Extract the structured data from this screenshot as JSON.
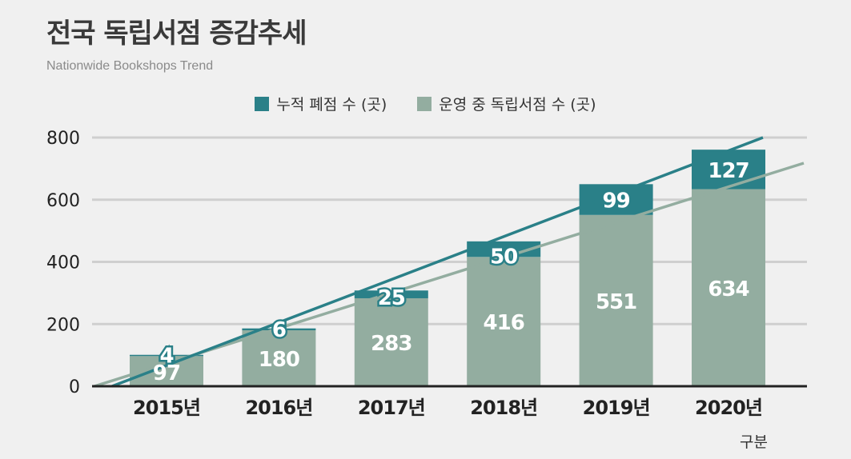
{
  "title": "전국 독립서점 증감추세",
  "subtitle": "Nationwide Bookshops Trend",
  "x_unit_label": "구분",
  "colors": {
    "closed": "#2a8088",
    "operating": "#93ada0",
    "gridline": "#cfcfcf",
    "axis": "#222222",
    "trend_closed": "#2a8088",
    "trend_operating": "#93ada0"
  },
  "chart_data": {
    "type": "bar",
    "stacked": true,
    "categories": [
      "2015년",
      "2016년",
      "2017년",
      "2018년",
      "2019년",
      "2020년"
    ],
    "series": [
      {
        "name": "운영 중 독립서점 수 (곳)",
        "values": [
          97,
          180,
          283,
          416,
          551,
          634
        ]
      },
      {
        "name": "누적 폐점 수 (곳)",
        "values": [
          4,
          6,
          25,
          50,
          99,
          127
        ]
      }
    ],
    "legend": [
      "누적 폐점 수 (곳)",
      "운영 중 독립서점 수 (곳)"
    ],
    "legend_position": "top-center",
    "y_ticks": [
      "0",
      "200",
      "400",
      "600",
      "800"
    ],
    "ylim": [
      0,
      800
    ],
    "grid": true,
    "trend_lines": true
  }
}
